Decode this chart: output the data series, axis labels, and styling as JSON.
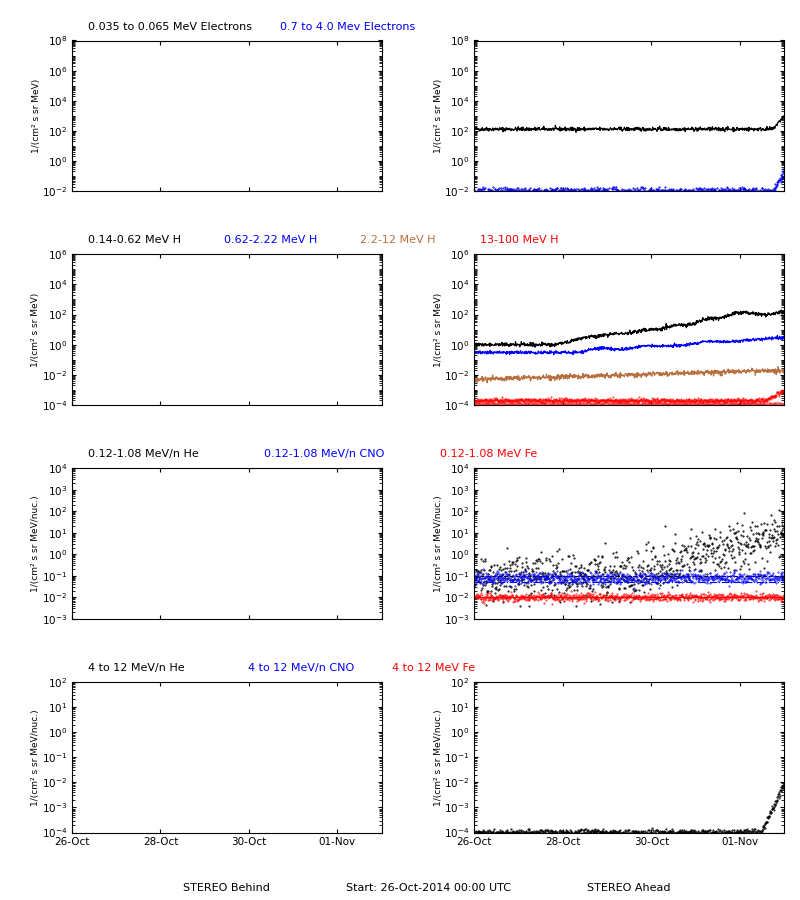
{
  "title_row1_black": "0.035 to 0.065 MeV Electrons",
  "title_row1_blue": "0.7 to 4.0 Mev Electrons",
  "title_row2_black": "0.14-0.62 MeV H",
  "title_row2_blue": "0.62-2.22 MeV H",
  "title_row2_brown": "2.2-12 MeV H",
  "title_row2_red": "13-100 MeV H",
  "title_row3_black": "0.12-1.08 MeV/n He",
  "title_row3_blue": "0.12-1.08 MeV/n CNO",
  "title_row3_red": "0.12-1.08 MeV Fe",
  "title_row4_black": "4 to 12 MeV/n He",
  "title_row4_blue": "4 to 12 MeV/n CNO",
  "title_row4_red": "4 to 12 MeV Fe",
  "xlabel_left": "STEREO Behind",
  "xlabel_right": "STEREO Ahead",
  "xlabel_center": "Start: 26-Oct-2014 00:00 UTC",
  "xtick_labels": [
    "26-Oct",
    "28-Oct",
    "30-Oct",
    "01-Nov"
  ],
  "bg": "#ffffff",
  "color_black": "#000000",
  "color_blue": "#0000ff",
  "color_red": "#ff0000",
  "color_brown": "#b87040"
}
